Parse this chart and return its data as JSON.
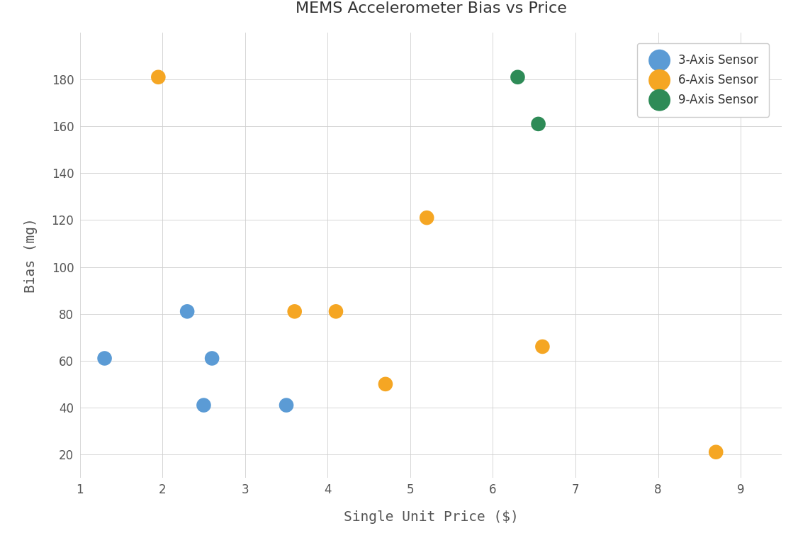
{
  "title": "MEMS Accelerometer Bias vs Price",
  "xlabel": "Single Unit Price ($)",
  "ylabel": "Bias (mg)",
  "xlim": [
    1,
    9.5
  ],
  "ylim": [
    10,
    200
  ],
  "background_color": "#ffffff",
  "grid_color": "#d0d0d0",
  "marker_size": 220,
  "series": [
    {
      "label": "3-Axis Sensor",
      "color": "#5b9bd5",
      "points": [
        [
          1.3,
          61
        ],
        [
          2.3,
          81
        ],
        [
          2.6,
          61
        ],
        [
          2.5,
          41
        ],
        [
          3.5,
          41
        ]
      ]
    },
    {
      "label": "6-Axis Sensor",
      "color": "#f5a623",
      "points": [
        [
          1.95,
          181
        ],
        [
          3.6,
          81
        ],
        [
          4.1,
          81
        ],
        [
          4.7,
          50
        ],
        [
          5.2,
          121
        ],
        [
          6.6,
          66
        ],
        [
          8.7,
          21
        ]
      ]
    },
    {
      "label": "9-Axis Sensor",
      "color": "#2e8b57",
      "points": [
        [
          6.3,
          181
        ],
        [
          6.55,
          161
        ]
      ]
    }
  ],
  "xticks": [
    1,
    2,
    3,
    4,
    5,
    6,
    7,
    8,
    9
  ],
  "yticks": [
    20,
    40,
    60,
    80,
    100,
    120,
    140,
    160,
    180
  ],
  "title_fontsize": 16,
  "axis_label_fontsize": 14,
  "tick_fontsize": 12,
  "legend_fontsize": 12
}
